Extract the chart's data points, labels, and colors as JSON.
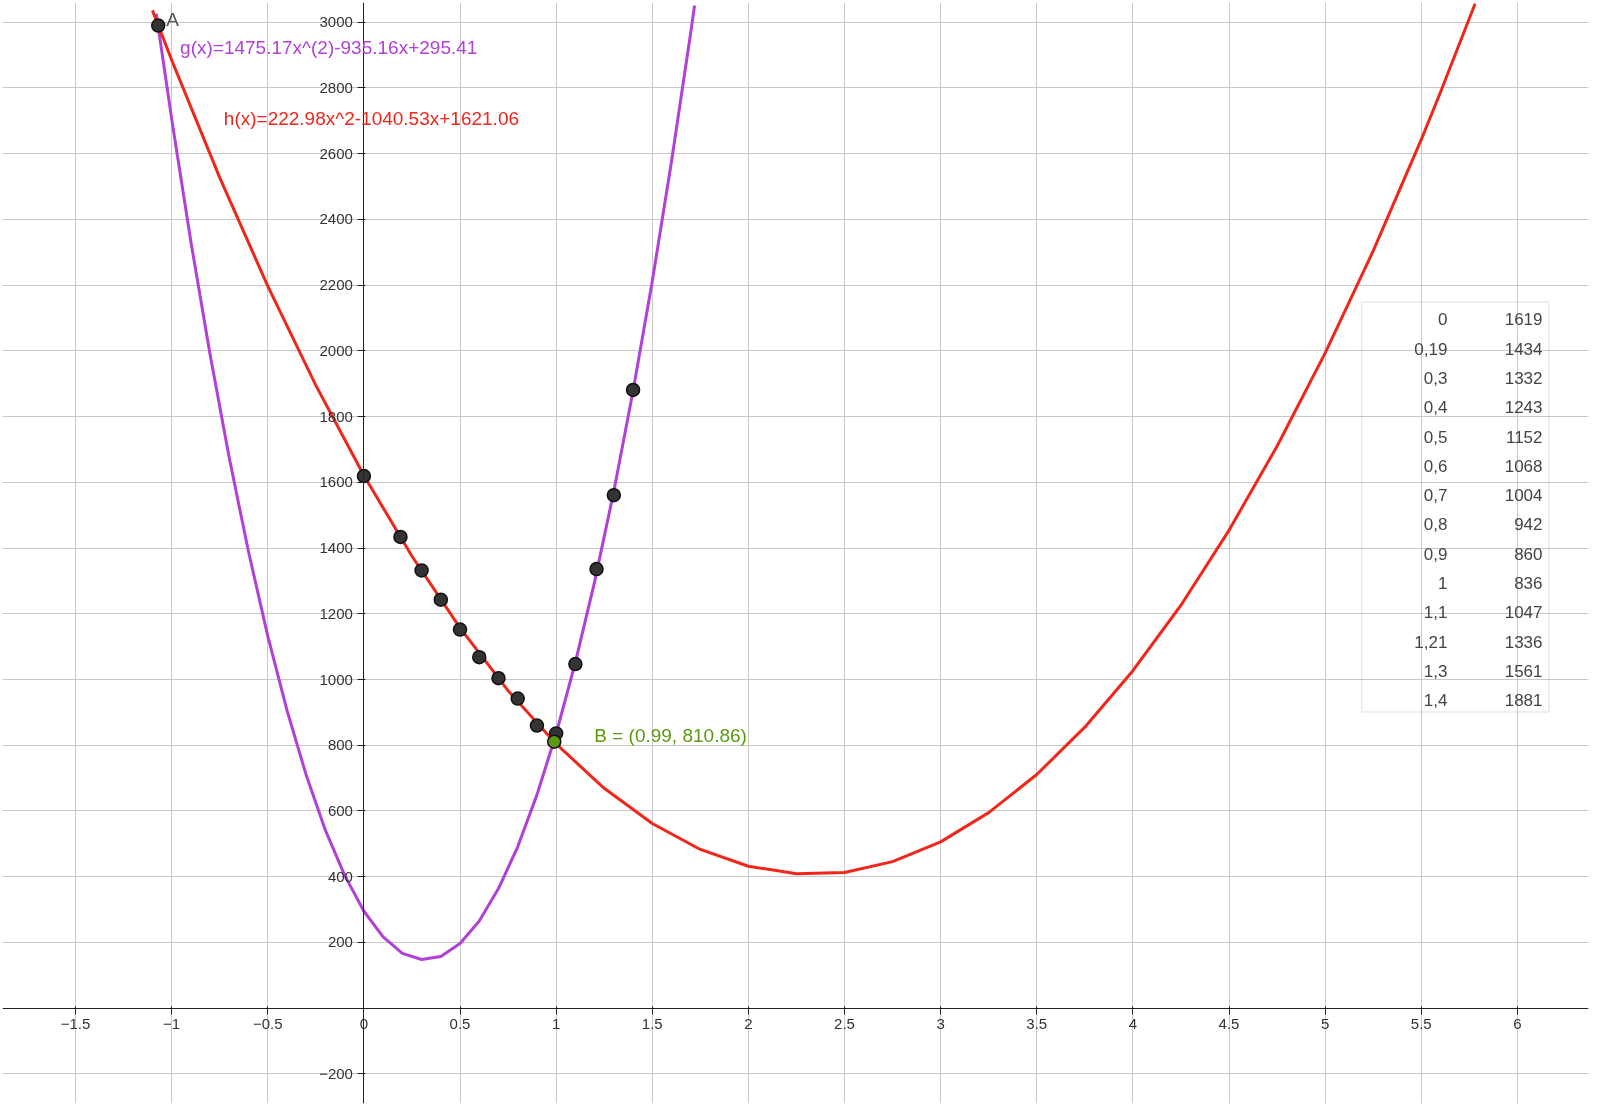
{
  "chart_data": [
    {
      "type": "scatter",
      "xlim": [
        -1.88,
        6.37
      ],
      "ylim": [
        -290,
        3060
      ],
      "xticks": [
        -1.5,
        -1,
        -0.5,
        0,
        0.5,
        1,
        1.5,
        2,
        2.5,
        3,
        3.5,
        4,
        4.5,
        5,
        5.5,
        6
      ],
      "yticks": [
        -200,
        200,
        400,
        600,
        800,
        1000,
        1200,
        1400,
        1600,
        1800,
        2000,
        2200,
        2400,
        2600,
        2800,
        3000
      ],
      "grid": true,
      "marker": "circle",
      "series": [
        {
          "type": "line",
          "marker": "none",
          "name": "g(x)=1475.17x^(2)-935.16x+295.41",
          "color": "#b040d8",
          "x": [
            -1.08,
            -1.0,
            -0.9,
            -0.8,
            -0.7,
            -0.6,
            -0.5,
            -0.4,
            -0.3,
            -0.2,
            -0.1,
            0,
            0.1,
            0.2,
            0.3,
            0.4,
            0.5,
            0.6,
            0.7,
            0.8,
            0.9,
            1.0,
            1.1,
            1.2,
            1.3,
            1.4,
            1.5,
            1.6,
            1.7,
            1.72
          ],
          "values": [
            3026,
            2706,
            2332,
            1988,
            1673,
            1388,
            1132,
            906,
            709,
            541,
            404,
            295,
            217,
            167,
            148,
            157,
            197,
            265,
            364,
            491,
            649,
            835,
            1052,
            1297,
            1573,
            1878,
            2212,
            2576,
            2969,
            3051
          ]
        },
        {
          "type": "line",
          "marker": "none",
          "name": "h(x)=222.98x^2-1040.53x+1621.06",
          "color": "#f0261b",
          "x": [
            -1.1,
            -1.0,
            -0.75,
            -0.5,
            -0.25,
            0,
            0.25,
            0.5,
            0.75,
            1.0,
            1.25,
            1.5,
            1.75,
            2.0,
            2.25,
            2.5,
            2.75,
            3.0,
            3.25,
            3.5,
            3.75,
            4.0,
            4.25,
            4.5,
            4.75,
            5.0,
            5.25,
            5.5,
            5.6,
            5.78
          ],
          "values": [
            3036,
            2885,
            2527,
            2197,
            1895,
            1621,
            1375,
            1157,
            966,
            804,
            669,
            562,
            483,
            432,
            409,
            413,
            446,
            506,
            595,
            711,
            855,
            1027,
            1226,
            1454,
            1710,
            1993,
            2304,
            2643,
            2787,
            3056
          ]
        },
        {
          "color": "#333333",
          "x": [
            0,
            0.19,
            0.3,
            0.4,
            0.5,
            0.6,
            0.7,
            0.8,
            0.9,
            1,
            1.1,
            1.21,
            1.3,
            1.4
          ],
          "values": [
            1619,
            1434,
            1332,
            1243,
            1152,
            1068,
            1004,
            942,
            860,
            836,
            1047,
            1336,
            1561,
            1881
          ]
        },
        {
          "color": "#333333",
          "x": [
            -1.07
          ],
          "values": [
            2990
          ]
        },
        {
          "color": "#5a9a10",
          "x": [
            0.99
          ],
          "values": [
            810.86
          ]
        }
      ],
      "annotations": [
        {
          "text": "A",
          "x": -1.07,
          "y": 2990
        },
        {
          "text": "B = (0.99, 810.86)",
          "x": 0.99,
          "y": 810.86
        }
      ]
    },
    {
      "type": "other",
      "annotations": [
        "0",
        "1619",
        "0,19",
        "1434",
        "0,3",
        "1332",
        "0,4",
        "1243",
        "0,5",
        "1152",
        "0,6",
        "1068",
        "0,7",
        "1004",
        "0,8",
        "942",
        "0,9",
        "860",
        "1",
        "836",
        "1,1",
        "1047",
        "1,21",
        "1336",
        "1,3",
        "1561",
        "1,4",
        "1881"
      ]
    }
  ]
}
